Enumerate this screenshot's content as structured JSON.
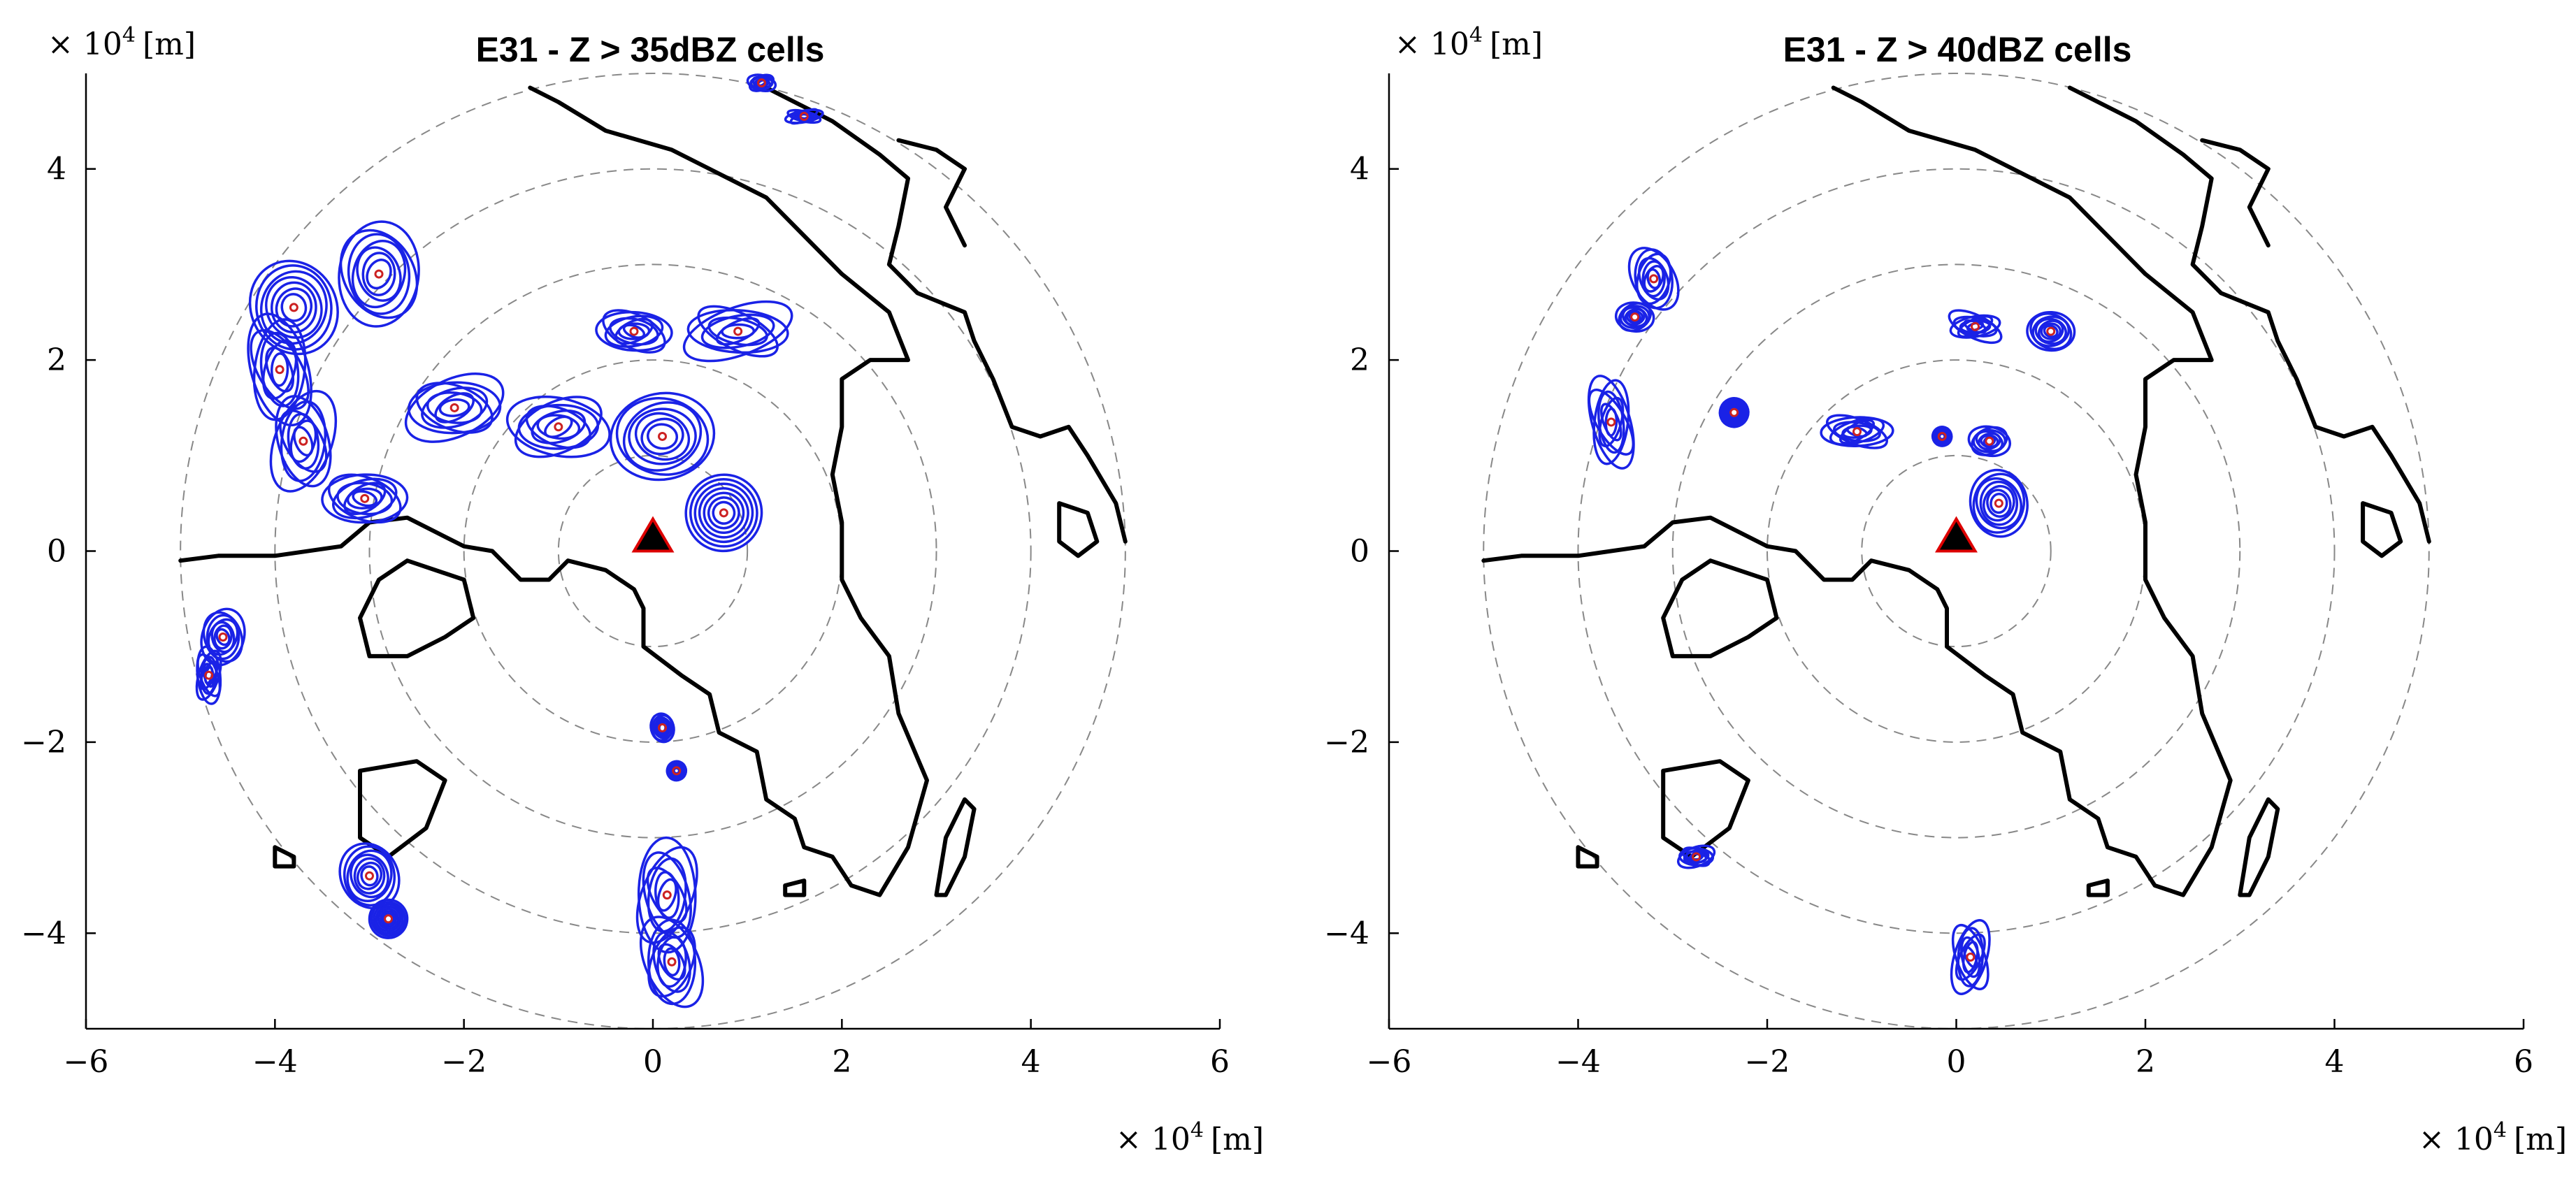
{
  "chart_data": [
    {
      "type": "scatter",
      "title": "E31 - Z > 35dBZ cells",
      "x_unit_prefix": "× 10",
      "x_unit_exponent": "4",
      "x_unit_suffix": "[m]",
      "y_unit_prefix": "× 10",
      "y_unit_exponent": "4",
      "y_unit_suffix": "[m]",
      "xlim": [
        -6,
        6
      ],
      "ylim": [
        -5,
        5
      ],
      "xticks": [
        -6,
        -4,
        -2,
        0,
        2,
        4,
        6
      ],
      "yticks": [
        -4,
        -2,
        0,
        2,
        4
      ],
      "xtick_labels": [
        "−6",
        "−4",
        "−2",
        "0",
        "2",
        "4",
        "6"
      ],
      "ytick_labels": [
        "−4",
        "−2",
        "0",
        "2",
        "4"
      ],
      "range_rings": [
        1,
        2,
        3,
        4,
        5
      ],
      "radar_site": [
        0,
        0
      ],
      "colors": {
        "cell_contour": "#1a22e6",
        "cell_center": "#cc2222",
        "coastline": "#000000",
        "range_ring": "#888888",
        "radar_marker": "#000000",
        "radar_outline": "#dd0000"
      },
      "cells": [
        {
          "x": -3.8,
          "y": 2.55,
          "rx": 0.45,
          "ry": 0.5
        },
        {
          "x": -2.9,
          "y": 2.9,
          "rx": 0.42,
          "ry": 0.55
        },
        {
          "x": -3.95,
          "y": 1.9,
          "rx": 0.3,
          "ry": 0.6
        },
        {
          "x": -3.7,
          "y": 1.15,
          "rx": 0.3,
          "ry": 0.55
        },
        {
          "x": -3.05,
          "y": 0.55,
          "rx": 0.45,
          "ry": 0.25
        },
        {
          "x": -2.1,
          "y": 1.5,
          "rx": 0.55,
          "ry": 0.3
        },
        {
          "x": -1.0,
          "y": 1.3,
          "rx": 0.55,
          "ry": 0.3
        },
        {
          "x": 0.1,
          "y": 1.2,
          "rx": 0.55,
          "ry": 0.45
        },
        {
          "x": 0.75,
          "y": 0.4,
          "rx": 0.4,
          "ry": 0.4
        },
        {
          "x": -0.2,
          "y": 2.3,
          "rx": 0.4,
          "ry": 0.2
        },
        {
          "x": 0.9,
          "y": 2.3,
          "rx": 0.6,
          "ry": 0.25
        },
        {
          "x": -4.55,
          "y": -0.9,
          "rx": 0.22,
          "ry": 0.3
        },
        {
          "x": -4.7,
          "y": -1.3,
          "rx": 0.12,
          "ry": 0.3
        },
        {
          "x": -3.0,
          "y": -3.4,
          "rx": 0.3,
          "ry": 0.35
        },
        {
          "x": -2.8,
          "y": -3.85,
          "rx": 0.2,
          "ry": 0.2
        },
        {
          "x": 0.1,
          "y": -1.85,
          "rx": 0.12,
          "ry": 0.15
        },
        {
          "x": 0.25,
          "y": -2.3,
          "rx": 0.1,
          "ry": 0.1
        },
        {
          "x": 0.15,
          "y": -3.6,
          "rx": 0.3,
          "ry": 0.6
        },
        {
          "x": 0.2,
          "y": -4.3,
          "rx": 0.28,
          "ry": 0.5
        },
        {
          "x": 1.15,
          "y": 4.9,
          "rx": 0.15,
          "ry": 0.08
        },
        {
          "x": 1.6,
          "y": 4.55,
          "rx": 0.2,
          "ry": 0.06
        }
      ],
      "coastlines": [
        [
          [
            -5.0,
            -0.1
          ],
          [
            -4.6,
            -0.05
          ],
          [
            -4.0,
            -0.05
          ],
          [
            -3.3,
            0.05
          ],
          [
            -3.0,
            0.3
          ],
          [
            -2.6,
            0.35
          ],
          [
            -2.3,
            0.2
          ],
          [
            -2.0,
            0.05
          ],
          [
            -1.7,
            0.0
          ],
          [
            -1.4,
            -0.3
          ],
          [
            -1.1,
            -0.3
          ],
          [
            -0.9,
            -0.1
          ],
          [
            -0.5,
            -0.2
          ],
          [
            -0.2,
            -0.4
          ],
          [
            -0.1,
            -0.6
          ],
          [
            -0.1,
            -1.0
          ],
          [
            0.3,
            -1.3
          ],
          [
            0.6,
            -1.5
          ],
          [
            0.7,
            -1.9
          ],
          [
            1.1,
            -2.1
          ],
          [
            1.2,
            -2.6
          ],
          [
            1.5,
            -2.8
          ],
          [
            1.6,
            -3.1
          ],
          [
            1.9,
            -3.2
          ],
          [
            2.1,
            -3.5
          ],
          [
            2.4,
            -3.6
          ],
          [
            2.7,
            -3.1
          ],
          [
            2.9,
            -2.4
          ],
          [
            2.6,
            -1.7
          ],
          [
            2.5,
            -1.1
          ],
          [
            2.2,
            -0.7
          ],
          [
            2.0,
            -0.3
          ],
          [
            2.0,
            0.3
          ],
          [
            1.9,
            0.8
          ],
          [
            2.0,
            1.3
          ],
          [
            2.0,
            1.8
          ],
          [
            2.3,
            2.0
          ],
          [
            2.7,
            2.0
          ],
          [
            2.5,
            2.5
          ],
          [
            2.0,
            2.9
          ],
          [
            1.2,
            3.7
          ],
          [
            0.2,
            4.2
          ],
          [
            -0.5,
            4.4
          ],
          [
            -1.0,
            4.7
          ],
          [
            -1.3,
            4.85
          ]
        ],
        [
          [
            1.2,
            4.85
          ],
          [
            1.9,
            4.5
          ],
          [
            2.4,
            4.15
          ],
          [
            2.7,
            3.9
          ],
          [
            2.6,
            3.4
          ],
          [
            2.5,
            3.0
          ],
          [
            2.8,
            2.7
          ],
          [
            3.3,
            2.5
          ],
          [
            3.4,
            2.2
          ],
          [
            3.6,
            1.8
          ],
          [
            3.8,
            1.3
          ],
          [
            4.1,
            1.2
          ],
          [
            4.4,
            1.3
          ],
          [
            4.6,
            1.0
          ],
          [
            4.9,
            0.5
          ],
          [
            5.0,
            0.1
          ]
        ],
        [
          [
            2.6,
            4.3
          ],
          [
            3.0,
            4.2
          ],
          [
            3.3,
            4.0
          ],
          [
            3.1,
            3.6
          ],
          [
            3.3,
            3.2
          ]
        ],
        [
          [
            -2.0,
            -0.3
          ],
          [
            -2.6,
            -0.1
          ],
          [
            -2.9,
            -0.3
          ],
          [
            -3.1,
            -0.7
          ],
          [
            -3.0,
            -1.1
          ],
          [
            -2.6,
            -1.1
          ],
          [
            -2.2,
            -0.9
          ],
          [
            -1.9,
            -0.7
          ],
          [
            -2.0,
            -0.3
          ]
        ],
        [
          [
            -3.1,
            -2.3
          ],
          [
            -2.5,
            -2.2
          ],
          [
            -2.2,
            -2.4
          ],
          [
            -2.4,
            -2.9
          ],
          [
            -2.8,
            -3.2
          ],
          [
            -3.1,
            -3.0
          ],
          [
            -3.1,
            -2.3
          ]
        ],
        [
          [
            -4.0,
            -3.1
          ],
          [
            -3.8,
            -3.2
          ],
          [
            -3.8,
            -3.3
          ],
          [
            -4.0,
            -3.3
          ],
          [
            -4.0,
            -3.1
          ]
        ],
        [
          [
            3.0,
            -3.6
          ],
          [
            3.1,
            -3.0
          ],
          [
            3.3,
            -2.6
          ],
          [
            3.4,
            -2.7
          ],
          [
            3.3,
            -3.2
          ],
          [
            3.1,
            -3.6
          ],
          [
            3.0,
            -3.6
          ]
        ],
        [
          [
            4.3,
            0.5
          ],
          [
            4.6,
            0.4
          ],
          [
            4.7,
            0.1
          ],
          [
            4.5,
            -0.05
          ],
          [
            4.3,
            0.1
          ],
          [
            4.3,
            0.5
          ]
        ],
        [
          [
            1.4,
            -3.5
          ],
          [
            1.6,
            -3.45
          ],
          [
            1.6,
            -3.6
          ],
          [
            1.4,
            -3.6
          ],
          [
            1.4,
            -3.5
          ]
        ]
      ]
    },
    {
      "type": "scatter",
      "title": "E31 - Z > 40dBZ cells",
      "x_unit_prefix": "× 10",
      "x_unit_exponent": "4",
      "x_unit_suffix": "[m]",
      "y_unit_prefix": "× 10",
      "y_unit_exponent": "4",
      "y_unit_suffix": "[m]",
      "xlim": [
        -6,
        6
      ],
      "ylim": [
        -5,
        5
      ],
      "xticks": [
        -6,
        -4,
        -2,
        0,
        2,
        4,
        6
      ],
      "yticks": [
        -4,
        -2,
        0,
        2,
        4
      ],
      "xtick_labels": [
        "−6",
        "−4",
        "−2",
        "0",
        "2",
        "4",
        "6"
      ],
      "ytick_labels": [
        "−4",
        "−2",
        "0",
        "2",
        "4"
      ],
      "range_rings": [
        1,
        2,
        3,
        4,
        5
      ],
      "radar_site": [
        0,
        0
      ],
      "colors": {
        "cell_contour": "#1a22e6",
        "cell_center": "#cc2222",
        "coastline": "#000000",
        "range_ring": "#888888",
        "radar_marker": "#000000",
        "radar_outline": "#dd0000"
      },
      "cells": [
        {
          "x": -3.2,
          "y": 2.85,
          "rx": 0.22,
          "ry": 0.35
        },
        {
          "x": -3.4,
          "y": 2.45,
          "rx": 0.2,
          "ry": 0.15
        },
        {
          "x": -3.65,
          "y": 1.35,
          "rx": 0.2,
          "ry": 0.5
        },
        {
          "x": -2.35,
          "y": 1.45,
          "rx": 0.15,
          "ry": 0.15
        },
        {
          "x": -1.05,
          "y": 1.25,
          "rx": 0.38,
          "ry": 0.15
        },
        {
          "x": -0.15,
          "y": 1.2,
          "rx": 0.1,
          "ry": 0.1
        },
        {
          "x": 0.35,
          "y": 1.15,
          "rx": 0.22,
          "ry": 0.15
        },
        {
          "x": 0.45,
          "y": 0.5,
          "rx": 0.3,
          "ry": 0.35
        },
        {
          "x": 0.2,
          "y": 2.35,
          "rx": 0.3,
          "ry": 0.12
        },
        {
          "x": 1.0,
          "y": 2.3,
          "rx": 0.25,
          "ry": 0.2
        },
        {
          "x": -2.75,
          "y": -3.2,
          "rx": 0.2,
          "ry": 0.1
        },
        {
          "x": 0.15,
          "y": -4.25,
          "rx": 0.17,
          "ry": 0.4
        }
      ],
      "coastlines": [
        [
          [
            -5.0,
            -0.1
          ],
          [
            -4.6,
            -0.05
          ],
          [
            -4.0,
            -0.05
          ],
          [
            -3.3,
            0.05
          ],
          [
            -3.0,
            0.3
          ],
          [
            -2.6,
            0.35
          ],
          [
            -2.3,
            0.2
          ],
          [
            -2.0,
            0.05
          ],
          [
            -1.7,
            0.0
          ],
          [
            -1.4,
            -0.3
          ],
          [
            -1.1,
            -0.3
          ],
          [
            -0.9,
            -0.1
          ],
          [
            -0.5,
            -0.2
          ],
          [
            -0.2,
            -0.4
          ],
          [
            -0.1,
            -0.6
          ],
          [
            -0.1,
            -1.0
          ],
          [
            0.3,
            -1.3
          ],
          [
            0.6,
            -1.5
          ],
          [
            0.7,
            -1.9
          ],
          [
            1.1,
            -2.1
          ],
          [
            1.2,
            -2.6
          ],
          [
            1.5,
            -2.8
          ],
          [
            1.6,
            -3.1
          ],
          [
            1.9,
            -3.2
          ],
          [
            2.1,
            -3.5
          ],
          [
            2.4,
            -3.6
          ],
          [
            2.7,
            -3.1
          ],
          [
            2.9,
            -2.4
          ],
          [
            2.6,
            -1.7
          ],
          [
            2.5,
            -1.1
          ],
          [
            2.2,
            -0.7
          ],
          [
            2.0,
            -0.3
          ],
          [
            2.0,
            0.3
          ],
          [
            1.9,
            0.8
          ],
          [
            2.0,
            1.3
          ],
          [
            2.0,
            1.8
          ],
          [
            2.3,
            2.0
          ],
          [
            2.7,
            2.0
          ],
          [
            2.5,
            2.5
          ],
          [
            2.0,
            2.9
          ],
          [
            1.2,
            3.7
          ],
          [
            0.2,
            4.2
          ],
          [
            -0.5,
            4.4
          ],
          [
            -1.0,
            4.7
          ],
          [
            -1.3,
            4.85
          ]
        ],
        [
          [
            1.2,
            4.85
          ],
          [
            1.9,
            4.5
          ],
          [
            2.4,
            4.15
          ],
          [
            2.7,
            3.9
          ],
          [
            2.6,
            3.4
          ],
          [
            2.5,
            3.0
          ],
          [
            2.8,
            2.7
          ],
          [
            3.3,
            2.5
          ],
          [
            3.4,
            2.2
          ],
          [
            3.6,
            1.8
          ],
          [
            3.8,
            1.3
          ],
          [
            4.1,
            1.2
          ],
          [
            4.4,
            1.3
          ],
          [
            4.6,
            1.0
          ],
          [
            4.9,
            0.5
          ],
          [
            5.0,
            0.1
          ]
        ],
        [
          [
            2.6,
            4.3
          ],
          [
            3.0,
            4.2
          ],
          [
            3.3,
            4.0
          ],
          [
            3.1,
            3.6
          ],
          [
            3.3,
            3.2
          ]
        ],
        [
          [
            -2.0,
            -0.3
          ],
          [
            -2.6,
            -0.1
          ],
          [
            -2.9,
            -0.3
          ],
          [
            -3.1,
            -0.7
          ],
          [
            -3.0,
            -1.1
          ],
          [
            -2.6,
            -1.1
          ],
          [
            -2.2,
            -0.9
          ],
          [
            -1.9,
            -0.7
          ],
          [
            -2.0,
            -0.3
          ]
        ],
        [
          [
            -3.1,
            -2.3
          ],
          [
            -2.5,
            -2.2
          ],
          [
            -2.2,
            -2.4
          ],
          [
            -2.4,
            -2.9
          ],
          [
            -2.8,
            -3.2
          ],
          [
            -3.1,
            -3.0
          ],
          [
            -3.1,
            -2.3
          ]
        ],
        [
          [
            -4.0,
            -3.1
          ],
          [
            -3.8,
            -3.2
          ],
          [
            -3.8,
            -3.3
          ],
          [
            -4.0,
            -3.3
          ],
          [
            -4.0,
            -3.1
          ]
        ],
        [
          [
            3.0,
            -3.6
          ],
          [
            3.1,
            -3.0
          ],
          [
            3.3,
            -2.6
          ],
          [
            3.4,
            -2.7
          ],
          [
            3.3,
            -3.2
          ],
          [
            3.1,
            -3.6
          ],
          [
            3.0,
            -3.6
          ]
        ],
        [
          [
            4.3,
            0.5
          ],
          [
            4.6,
            0.4
          ],
          [
            4.7,
            0.1
          ],
          [
            4.5,
            -0.05
          ],
          [
            4.3,
            0.1
          ],
          [
            4.3,
            0.5
          ]
        ],
        [
          [
            1.4,
            -3.5
          ],
          [
            1.6,
            -3.45
          ],
          [
            1.6,
            -3.6
          ],
          [
            1.4,
            -3.6
          ],
          [
            1.4,
            -3.5
          ]
        ]
      ]
    }
  ]
}
